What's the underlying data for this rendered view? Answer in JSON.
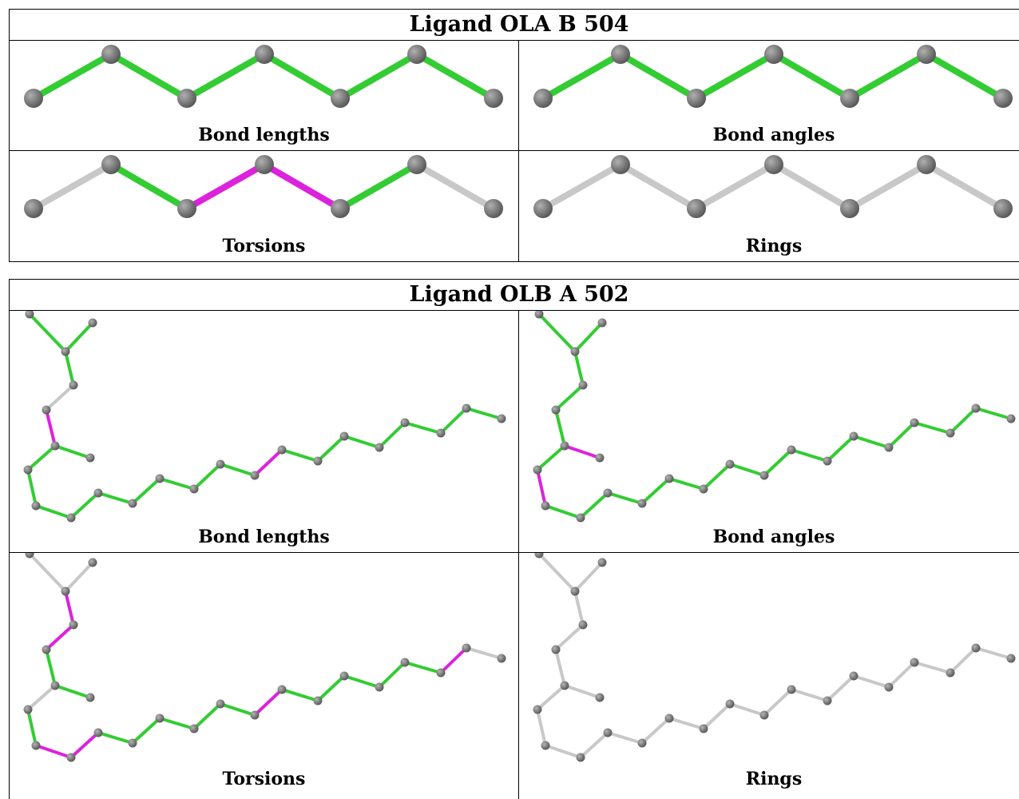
{
  "tables": [
    {
      "title": "Ligand OLA B 504",
      "captions": [
        "Bond lengths",
        "Bond angles",
        "Torsions",
        "Rings"
      ]
    },
    {
      "title": "Ligand OLB A 502",
      "captions": [
        "Bond lengths",
        "Bond angles",
        "Torsions",
        "Rings"
      ]
    }
  ],
  "colors": {
    "ok_bond": "#33cc33",
    "outlier_bond": "#dd22dd",
    "unassessed_bond": "#c8c8c8",
    "atom": "#6e6e6e"
  }
}
